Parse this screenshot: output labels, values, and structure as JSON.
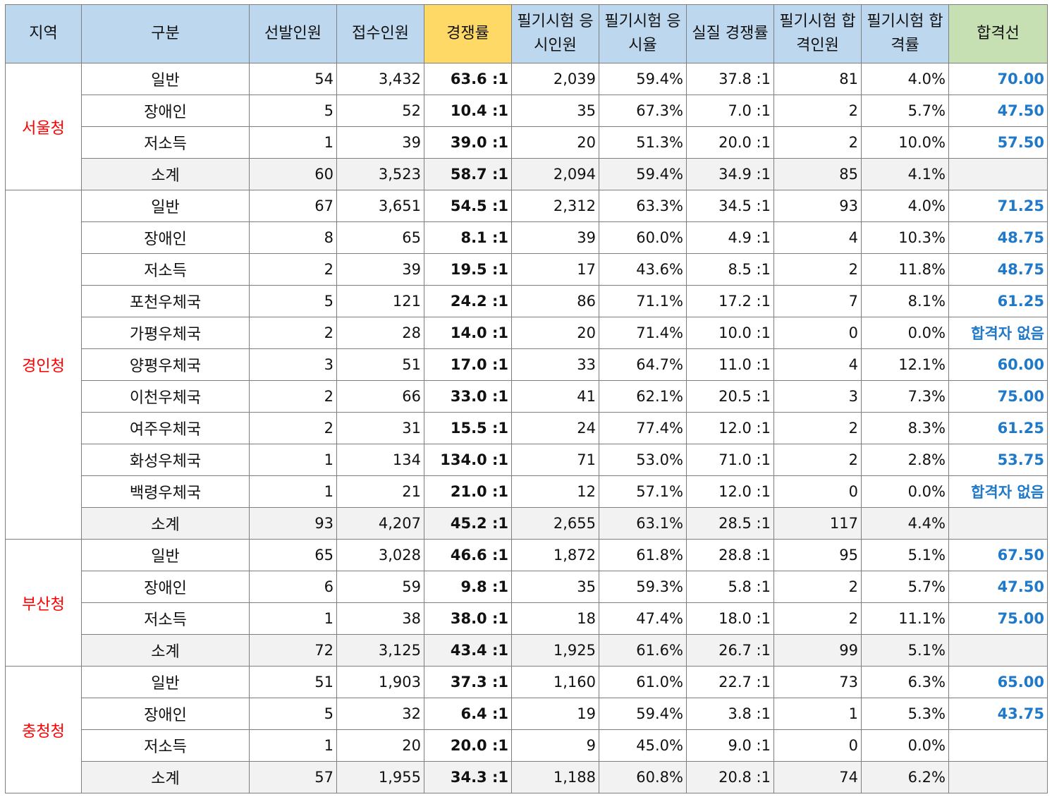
{
  "headers": [
    "지역",
    "구분",
    "선발인원",
    "접수인원",
    "경쟁률",
    "필기시험 응시인원",
    "필기시험 응시율",
    "실질 경쟁률",
    "필기시험 합격인원",
    "필기시험 합격률",
    "합격선"
  ],
  "colors": {
    "header_bg": "#bdd7ee",
    "ratio_header_bg": "#ffd966",
    "cutline_header_bg": "#c6e0b4",
    "region_text": "#ff0000",
    "cutline_text": "#1f78c8",
    "subtotal_bg": "#f2f2f2"
  },
  "groups": [
    {
      "region": "서울청",
      "rows": [
        {
          "cat": "일반",
          "selected": "54",
          "applied": "3,432",
          "ratio": "63.6 :1",
          "examinees": "2,039",
          "attend_rate": "59.4%",
          "real_ratio": "37.8 :1",
          "passed": "81",
          "pass_rate": "4.0%",
          "cutline": "70.00"
        },
        {
          "cat": "장애인",
          "selected": "5",
          "applied": "52",
          "ratio": "10.4 :1",
          "examinees": "35",
          "attend_rate": "67.3%",
          "real_ratio": "7.0 :1",
          "passed": "2",
          "pass_rate": "5.7%",
          "cutline": "47.50"
        },
        {
          "cat": "저소득",
          "selected": "1",
          "applied": "39",
          "ratio": "39.0 :1",
          "examinees": "20",
          "attend_rate": "51.3%",
          "real_ratio": "20.0 :1",
          "passed": "2",
          "pass_rate": "10.0%",
          "cutline": "57.50"
        },
        {
          "cat": "소계",
          "selected": "60",
          "applied": "3,523",
          "ratio": "58.7 :1",
          "examinees": "2,094",
          "attend_rate": "59.4%",
          "real_ratio": "34.9 :1",
          "passed": "85",
          "pass_rate": "4.1%",
          "cutline": "",
          "subtotal": true
        }
      ]
    },
    {
      "region": "경인청",
      "rows": [
        {
          "cat": "일반",
          "selected": "67",
          "applied": "3,651",
          "ratio": "54.5 :1",
          "examinees": "2,312",
          "attend_rate": "63.3%",
          "real_ratio": "34.5 :1",
          "passed": "93",
          "pass_rate": "4.0%",
          "cutline": "71.25"
        },
        {
          "cat": "장애인",
          "selected": "8",
          "applied": "65",
          "ratio": "8.1 :1",
          "examinees": "39",
          "attend_rate": "60.0%",
          "real_ratio": "4.9 :1",
          "passed": "4",
          "pass_rate": "10.3%",
          "cutline": "48.75"
        },
        {
          "cat": "저소득",
          "selected": "2",
          "applied": "39",
          "ratio": "19.5 :1",
          "examinees": "17",
          "attend_rate": "43.6%",
          "real_ratio": "8.5 :1",
          "passed": "2",
          "pass_rate": "11.8%",
          "cutline": "48.75"
        },
        {
          "cat": "포천우체국",
          "selected": "5",
          "applied": "121",
          "ratio": "24.2 :1",
          "examinees": "86",
          "attend_rate": "71.1%",
          "real_ratio": "17.2 :1",
          "passed": "7",
          "pass_rate": "8.1%",
          "cutline": "61.25"
        },
        {
          "cat": "가평우체국",
          "selected": "2",
          "applied": "28",
          "ratio": "14.0 :1",
          "examinees": "20",
          "attend_rate": "71.4%",
          "real_ratio": "10.0 :1",
          "passed": "0",
          "pass_rate": "0.0%",
          "cutline": "합격자 없음"
        },
        {
          "cat": "양평우체국",
          "selected": "3",
          "applied": "51",
          "ratio": "17.0 :1",
          "examinees": "33",
          "attend_rate": "64.7%",
          "real_ratio": "11.0 :1",
          "passed": "4",
          "pass_rate": "12.1%",
          "cutline": "60.00"
        },
        {
          "cat": "이천우체국",
          "selected": "2",
          "applied": "66",
          "ratio": "33.0 :1",
          "examinees": "41",
          "attend_rate": "62.1%",
          "real_ratio": "20.5 :1",
          "passed": "3",
          "pass_rate": "7.3%",
          "cutline": "75.00"
        },
        {
          "cat": "여주우체국",
          "selected": "2",
          "applied": "31",
          "ratio": "15.5 :1",
          "examinees": "24",
          "attend_rate": "77.4%",
          "real_ratio": "12.0 :1",
          "passed": "2",
          "pass_rate": "8.3%",
          "cutline": "61.25"
        },
        {
          "cat": "화성우체국",
          "selected": "1",
          "applied": "134",
          "ratio": "134.0 :1",
          "examinees": "71",
          "attend_rate": "53.0%",
          "real_ratio": "71.0 :1",
          "passed": "2",
          "pass_rate": "2.8%",
          "cutline": "53.75"
        },
        {
          "cat": "백령우체국",
          "selected": "1",
          "applied": "21",
          "ratio": "21.0 :1",
          "examinees": "12",
          "attend_rate": "57.1%",
          "real_ratio": "12.0 :1",
          "passed": "0",
          "pass_rate": "0.0%",
          "cutline": "합격자 없음"
        },
        {
          "cat": "소계",
          "selected": "93",
          "applied": "4,207",
          "ratio": "45.2 :1",
          "examinees": "2,655",
          "attend_rate": "63.1%",
          "real_ratio": "28.5 :1",
          "passed": "117",
          "pass_rate": "4.4%",
          "cutline": "",
          "subtotal": true
        }
      ]
    },
    {
      "region": "부산청",
      "rows": [
        {
          "cat": "일반",
          "selected": "65",
          "applied": "3,028",
          "ratio": "46.6 :1",
          "examinees": "1,872",
          "attend_rate": "61.8%",
          "real_ratio": "28.8 :1",
          "passed": "95",
          "pass_rate": "5.1%",
          "cutline": "67.50"
        },
        {
          "cat": "장애인",
          "selected": "6",
          "applied": "59",
          "ratio": "9.8 :1",
          "examinees": "35",
          "attend_rate": "59.3%",
          "real_ratio": "5.8 :1",
          "passed": "2",
          "pass_rate": "5.7%",
          "cutline": "47.50"
        },
        {
          "cat": "저소득",
          "selected": "1",
          "applied": "38",
          "ratio": "38.0 :1",
          "examinees": "18",
          "attend_rate": "47.4%",
          "real_ratio": "18.0 :1",
          "passed": "2",
          "pass_rate": "11.1%",
          "cutline": "75.00"
        },
        {
          "cat": "소계",
          "selected": "72",
          "applied": "3,125",
          "ratio": "43.4 :1",
          "examinees": "1,925",
          "attend_rate": "61.6%",
          "real_ratio": "26.7 :1",
          "passed": "99",
          "pass_rate": "5.1%",
          "cutline": "",
          "subtotal": true
        }
      ]
    },
    {
      "region": "충청청",
      "rows": [
        {
          "cat": "일반",
          "selected": "51",
          "applied": "1,903",
          "ratio": "37.3 :1",
          "examinees": "1,160",
          "attend_rate": "61.0%",
          "real_ratio": "22.7 :1",
          "passed": "73",
          "pass_rate": "6.3%",
          "cutline": "65.00"
        },
        {
          "cat": "장애인",
          "selected": "5",
          "applied": "32",
          "ratio": "6.4 :1",
          "examinees": "19",
          "attend_rate": "59.4%",
          "real_ratio": "3.8 :1",
          "passed": "1",
          "pass_rate": "5.3%",
          "cutline": "43.75"
        },
        {
          "cat": "저소득",
          "selected": "1",
          "applied": "20",
          "ratio": "20.0 :1",
          "examinees": "9",
          "attend_rate": "45.0%",
          "real_ratio": "9.0 :1",
          "passed": "0",
          "pass_rate": "0.0%",
          "cutline": ""
        },
        {
          "cat": "소계",
          "selected": "57",
          "applied": "1,955",
          "ratio": "34.3 :1",
          "examinees": "1,188",
          "attend_rate": "60.8%",
          "real_ratio": "20.8 :1",
          "passed": "74",
          "pass_rate": "6.2%",
          "cutline": "",
          "subtotal": true
        }
      ]
    }
  ]
}
